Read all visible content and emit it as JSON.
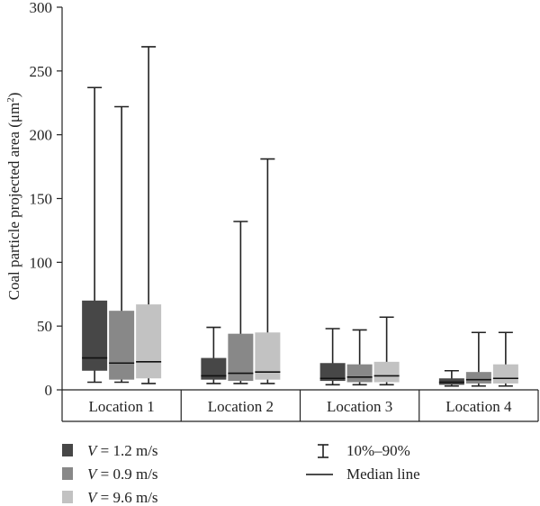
{
  "chart_data": {
    "type": "box",
    "ylabel": "Coal particle projected area (μm²)",
    "ylabel_main": "Coal particle projected area (μm",
    "ylabel_sup": "2",
    "ylabel_close": ")",
    "ylim": [
      0,
      300
    ],
    "yticks": [
      0,
      50,
      100,
      150,
      200,
      250,
      300
    ],
    "categories": [
      "Location 1",
      "Location 2",
      "Location 3",
      "Location 4"
    ],
    "series": [
      {
        "name": "V = 1.2 m/s",
        "var": "V",
        "rest": " = 1.2 m/s",
        "color": "#474747",
        "boxes": [
          {
            "whisker_low": 6,
            "q1": 15,
            "median": 25,
            "q3": 70,
            "whisker_high": 237
          },
          {
            "whisker_low": 5,
            "q1": 8,
            "median": 11,
            "q3": 25,
            "whisker_high": 49
          },
          {
            "whisker_low": 4,
            "q1": 7,
            "median": 9,
            "q3": 21,
            "whisker_high": 48
          },
          {
            "whisker_low": 3,
            "q1": 4,
            "median": 6,
            "q3": 9,
            "whisker_high": 15
          }
        ]
      },
      {
        "name": "V = 0.9 m/s",
        "var": "V",
        "rest": " = 0.9 m/s",
        "color": "#888888",
        "boxes": [
          {
            "whisker_low": 6,
            "q1": 8,
            "median": 21,
            "q3": 62,
            "whisker_high": 222
          },
          {
            "whisker_low": 5,
            "q1": 7,
            "median": 13,
            "q3": 44,
            "whisker_high": 132
          },
          {
            "whisker_low": 4,
            "q1": 6,
            "median": 10,
            "q3": 20,
            "whisker_high": 47
          },
          {
            "whisker_low": 3,
            "q1": 5,
            "median": 8,
            "q3": 14,
            "whisker_high": 45
          }
        ]
      },
      {
        "name": "V = 9.6 m/s",
        "var": "V",
        "rest": " = 9.6 m/s",
        "color": "#c2c2c2",
        "boxes": [
          {
            "whisker_low": 5,
            "q1": 9,
            "median": 22,
            "q3": 67,
            "whisker_high": 269
          },
          {
            "whisker_low": 5,
            "q1": 8,
            "median": 14,
            "q3": 45,
            "whisker_high": 181
          },
          {
            "whisker_low": 4,
            "q1": 6,
            "median": 11,
            "q3": 22,
            "whisker_high": 57
          },
          {
            "whisker_low": 3,
            "q1": 5,
            "median": 9,
            "q3": 20,
            "whisker_high": 45
          }
        ]
      }
    ],
    "legend_extra": [
      {
        "symbol": "whisker",
        "label": "10%–90%"
      },
      {
        "symbol": "line",
        "label": "Median line"
      }
    ],
    "legend_position": "bottom"
  }
}
